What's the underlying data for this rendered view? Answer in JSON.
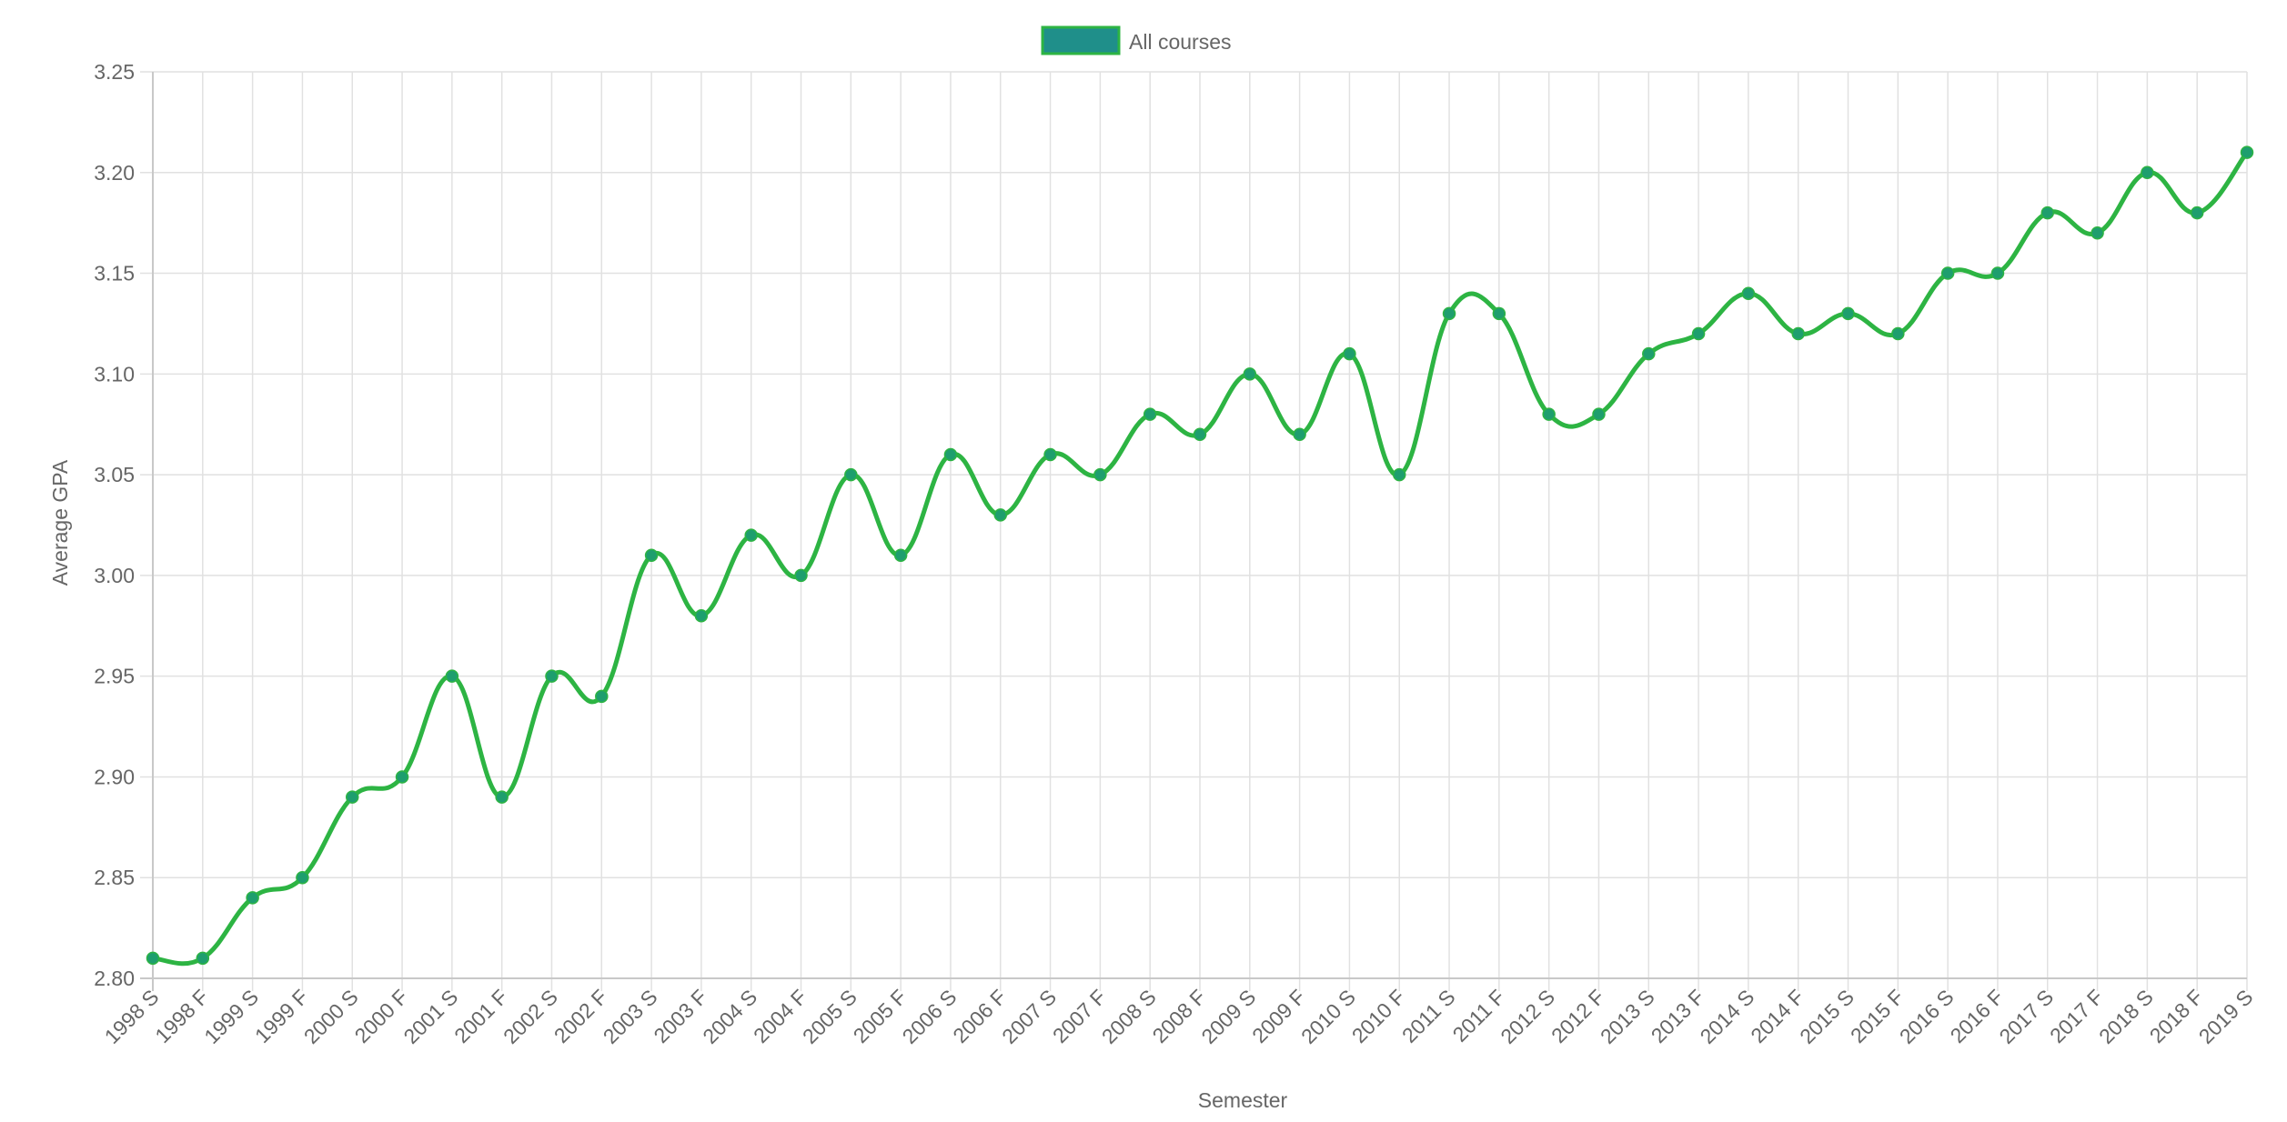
{
  "chart_data": {
    "type": "line",
    "title": "",
    "xlabel": "Semester",
    "ylabel": "Average GPA",
    "ylim": [
      2.8,
      3.25
    ],
    "y_ticks": [
      "2.80",
      "2.85",
      "2.90",
      "2.95",
      "3.00",
      "3.05",
      "3.10",
      "3.15",
      "3.20",
      "3.25"
    ],
    "grid": true,
    "legend_position": "top-center",
    "curve": "smooth",
    "categories": [
      "1998 S",
      "1998 F",
      "1999 S",
      "1999 F",
      "2000 S",
      "2000 F",
      "2001 S",
      "2001 F",
      "2002 S",
      "2002 F",
      "2003 S",
      "2003 F",
      "2004 S",
      "2004 F",
      "2005 S",
      "2005 F",
      "2006 S",
      "2006 F",
      "2007 S",
      "2007 F",
      "2008 S",
      "2008 F",
      "2009 S",
      "2009 F",
      "2010 S",
      "2010 F",
      "2011 S",
      "2011 F",
      "2012 S",
      "2012 F",
      "2013 S",
      "2013 F",
      "2014 S",
      "2014 F",
      "2015 S",
      "2015 F",
      "2016 S",
      "2016 F",
      "2017 S",
      "2017 F",
      "2018 S",
      "2018 F",
      "2019 S"
    ],
    "series": [
      {
        "name": "All courses",
        "line_color": "#2db443",
        "point_color": "#1e9e6e",
        "legend_fill": "#1f8f8a",
        "values": [
          2.81,
          2.81,
          2.84,
          2.85,
          2.89,
          2.9,
          2.95,
          2.89,
          2.95,
          2.94,
          3.01,
          2.98,
          3.02,
          3.0,
          3.05,
          3.01,
          3.06,
          3.03,
          3.06,
          3.05,
          3.08,
          3.07,
          3.1,
          3.07,
          3.11,
          3.05,
          3.13,
          3.13,
          3.08,
          3.08,
          3.11,
          3.12,
          3.14,
          3.12,
          3.13,
          3.12,
          3.15,
          3.15,
          3.18,
          3.17,
          3.2,
          3.18,
          3.21
        ]
      }
    ]
  }
}
